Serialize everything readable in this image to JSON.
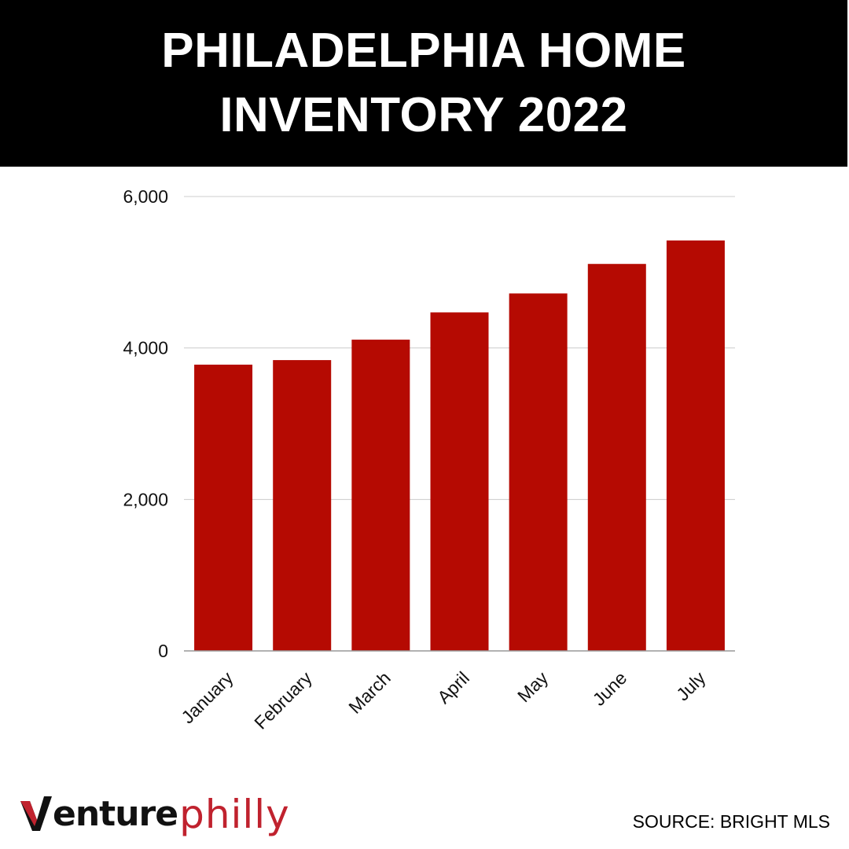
{
  "header": {
    "title_line1": "PHILADELPHIA HOME",
    "title_line2": "INVENTORY 2022"
  },
  "chart_data": {
    "type": "bar",
    "title": "PHILADELPHIA HOME INVENTORY 2022",
    "categories": [
      "January",
      "February",
      "March",
      "April",
      "May",
      "June",
      "July"
    ],
    "values": [
      3780,
      3840,
      4110,
      4470,
      4720,
      5110,
      5420
    ],
    "ylim": [
      0,
      6000
    ],
    "yticks": [
      0,
      2000,
      4000,
      6000
    ],
    "ytick_labels": [
      "0",
      "2,000",
      "4,000",
      "6,000"
    ],
    "xlabel": "",
    "ylabel": "",
    "grid": true,
    "legend": "none",
    "bar_color": "#b50a02"
  },
  "footer": {
    "logo_part1": "enture",
    "logo_part2": "philly",
    "logo_wordmark": "Venturephilly",
    "source": "SOURCE: BRIGHT MLS"
  },
  "colors": {
    "header_bg": "#000000",
    "header_text": "#ffffff",
    "bar": "#b50a02",
    "logo_accent": "#c0222e"
  }
}
